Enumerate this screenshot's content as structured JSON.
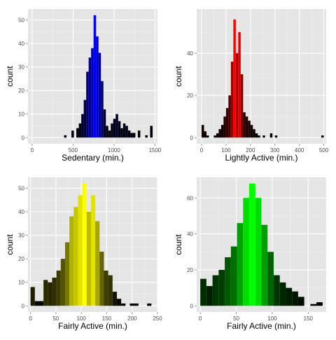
{
  "chart_data": [
    {
      "type": "bar",
      "panel": "top-left",
      "xlabel": "Sedentary (min.)",
      "ylabel": "count",
      "xlim": [
        -50,
        1530
      ],
      "ylim": [
        -2.6,
        54.6
      ],
      "x_ticks": [
        0,
        500,
        1000,
        1500
      ],
      "y_ticks": [
        0,
        10,
        20,
        30,
        40,
        50
      ],
      "binwidth": 30,
      "grid": true,
      "fill_dark": "#000000",
      "fill_bright": "#0000ff",
      "x": [
        390,
        480,
        540,
        570,
        600,
        630,
        660,
        690,
        720,
        750,
        780,
        810,
        840,
        870,
        900,
        930,
        960,
        990,
        1020,
        1050,
        1080,
        1110,
        1140,
        1170,
        1200,
        1230,
        1290,
        1380,
        1440
      ],
      "values": [
        1,
        3,
        4,
        6,
        10,
        16,
        28,
        34,
        38,
        52,
        43,
        36,
        24,
        12,
        5,
        3,
        6,
        8,
        10,
        7,
        4,
        6,
        5,
        3,
        2,
        2,
        3,
        1,
        5
      ]
    },
    {
      "type": "bar",
      "panel": "top-right",
      "xlabel": "Lightly Active (min.)",
      "ylabel": "count",
      "xlim": [
        -20,
        510
      ],
      "ylim": [
        -2.9,
        60.9
      ],
      "x_ticks": [
        0,
        100,
        200,
        300,
        400,
        500
      ],
      "y_ticks": [
        0,
        20,
        40
      ],
      "binwidth": 10,
      "grid": true,
      "fill_dark": "#000000",
      "fill_bright": "#ff0000",
      "x": [
        0,
        10,
        20,
        50,
        60,
        70,
        80,
        90,
        100,
        110,
        120,
        130,
        140,
        150,
        160,
        170,
        180,
        190,
        200,
        210,
        220,
        230,
        250,
        280,
        300,
        490
      ],
      "values": [
        6,
        3,
        1,
        1,
        2,
        4,
        6,
        10,
        14,
        20,
        36,
        56,
        40,
        50,
        30,
        12,
        10,
        8,
        6,
        4,
        2,
        1,
        1,
        2,
        1,
        1
      ]
    },
    {
      "type": "bar",
      "panel": "bottom-left",
      "xlabel": "Fairly Active (min.)",
      "ylabel": "count",
      "xlim": [
        -5,
        250
      ],
      "ylim": [
        -2.6,
        54.6
      ],
      "x_ticks": [
        0,
        50,
        100,
        150,
        200,
        250
      ],
      "y_ticks": [
        0,
        10,
        20,
        30,
        40,
        50
      ],
      "binwidth": 8.5,
      "grid": true,
      "fill_dark": "#000000",
      "fill_bright": "#ffff00",
      "x": [
        0,
        8.5,
        17,
        25.5,
        34,
        42.5,
        51,
        59.5,
        68,
        76.5,
        85,
        93.5,
        102,
        110.5,
        119,
        127.5,
        136,
        144.5,
        153,
        161.5,
        170,
        178.5,
        195.5,
        204,
        229.5
      ],
      "values": [
        8,
        2,
        2,
        11,
        10,
        12,
        15,
        20,
        27,
        38,
        42,
        47,
        52,
        40,
        47,
        36,
        23,
        15,
        13,
        6,
        3,
        1,
        1,
        1,
        1
      ]
    },
    {
      "type": "bar",
      "panel": "bottom-right",
      "xlabel": "Fairly Active (min.)",
      "ylabel": "count",
      "xlim": [
        -5,
        175
      ],
      "ylim": [
        -3.4,
        71.4
      ],
      "x_ticks": [
        0,
        50,
        100,
        150
      ],
      "y_ticks": [
        0,
        20,
        40,
        60
      ],
      "binwidth": 8.5,
      "grid": true,
      "fill_dark": "#000000",
      "fill_bright": "#00ff00",
      "x": [
        0,
        8.5,
        17,
        25.5,
        34,
        42.5,
        51,
        59.5,
        68,
        76.5,
        85,
        93.5,
        102,
        110.5,
        119,
        127.5,
        136,
        153,
        161.5
      ],
      "values": [
        15,
        11,
        17,
        20,
        27,
        33,
        46,
        60,
        68,
        60,
        45,
        30,
        17,
        13,
        10,
        8,
        5,
        1,
        2
      ]
    }
  ]
}
